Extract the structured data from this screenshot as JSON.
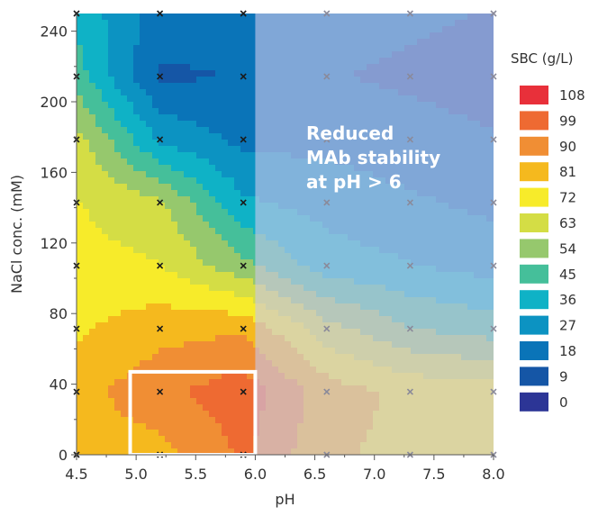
{
  "chart_data": {
    "type": "heatmap",
    "subtype": "contour",
    "xlabel": "pH",
    "ylabel": "NaCl conc. (mM)",
    "xlim": [
      4.5,
      8.0
    ],
    "ylim": [
      0,
      250
    ],
    "x_ticks": [
      "4.5",
      "5.0",
      "5.5",
      "6.0",
      "6.5",
      "7.0",
      "7.5",
      "8.0"
    ],
    "y_ticks": [
      "0",
      "40",
      "80",
      "120",
      "160",
      "200",
      "240"
    ],
    "legend_title": "SBC (g/L)",
    "legend_position": "right",
    "legend": [
      {
        "label": "108",
        "color": "#e8303a"
      },
      {
        "label": "99",
        "color": "#ee6a32"
      },
      {
        "label": "90",
        "color": "#f08e34"
      },
      {
        "label": "81",
        "color": "#f5b91e"
      },
      {
        "label": "72",
        "color": "#f7eb2a"
      },
      {
        "label": "63",
        "color": "#d4dd45"
      },
      {
        "label": "54",
        "color": "#96c86d"
      },
      {
        "label": "45",
        "color": "#45bf9a"
      },
      {
        "label": "36",
        "color": "#0fb2c6"
      },
      {
        "label": "27",
        "color": "#0c93c2"
      },
      {
        "label": "18",
        "color": "#0a74b8"
      },
      {
        "label": "9",
        "color": "#1556a6"
      },
      {
        "label": "0",
        "color": "#2c3596"
      }
    ],
    "grid_x": [
      4.5,
      5.2,
      5.9,
      6.6,
      7.3,
      8.0
    ],
    "grid_y": [
      0,
      35.7,
      71.4,
      107.1,
      142.9,
      178.6,
      214.3,
      250
    ],
    "z": [
      [
        81,
        82,
        96,
        78,
        74,
        70
      ],
      [
        82,
        92,
        100,
        81,
        74,
        72
      ],
      [
        75,
        82,
        84,
        62,
        50,
        45
      ],
      [
        71,
        68,
        52,
        36,
        32,
        28
      ],
      [
        68,
        60,
        33,
        28,
        24,
        20
      ],
      [
        62,
        30,
        20,
        20,
        17,
        14
      ],
      [
        45,
        12,
        14,
        14,
        12,
        10
      ],
      [
        38,
        18,
        18,
        17,
        15,
        13
      ]
    ],
    "shaded_region": {
      "x": [
        6.0,
        8.0
      ],
      "y": [
        0,
        250
      ]
    },
    "annotation": "Reduced\nMAb stability\nat pH > 6",
    "highlight_box": {
      "x": [
        4.95,
        6.0
      ],
      "y": [
        0,
        47
      ]
    }
  }
}
